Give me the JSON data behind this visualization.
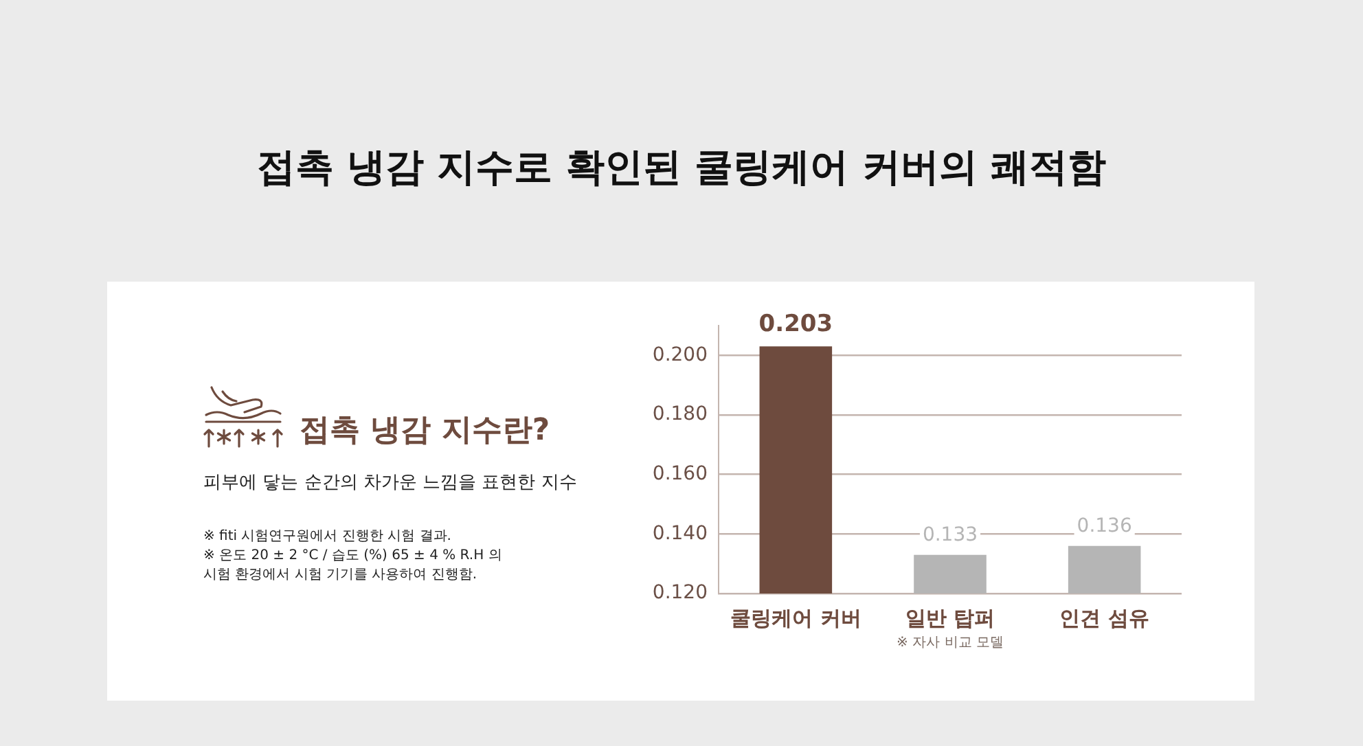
{
  "chart_data": {
    "type": "bar",
    "title": "접촉 냉감 지수로 확인된 쿨링케어 커버의 쾌적함",
    "subtitle": "접촉 냉감 지수란?",
    "annotations": [
      "피부에 닿는 순간의 차가운 느낌을 표현한 지수",
      "※ fiti 시험연구원에서 진행한 시험 결과.",
      "※ 온도 20 ± 2 °C / 습도 (%) 65 ± 4 % R.H 의 시험 환경에서 시험 기기를 사용하여 진행함."
    ],
    "categories": [
      "쿨링케어 커버",
      "일반 탑퍼\n※ 자사 비교 모델",
      "인견 섬유"
    ],
    "values": [
      0.203,
      0.133,
      0.136
    ],
    "colors": [
      "#6e4b3e",
      "#b5b5b5",
      "#b5b5b5"
    ],
    "ylim": [
      0.12,
      0.21
    ],
    "yticks": [
      {
        "value": 0.12,
        "label": "0.120"
      },
      {
        "value": 0.14,
        "label": "0.140"
      },
      {
        "value": 0.16,
        "label": "0.160"
      },
      {
        "value": 0.18,
        "label": "0.180"
      },
      {
        "value": 0.2,
        "label": "0.200"
      }
    ],
    "grid": "y",
    "data_labels": true
  }
}
